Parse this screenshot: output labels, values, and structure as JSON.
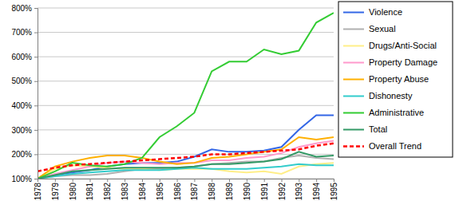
{
  "chart_data": {
    "type": "line",
    "x": [
      1978,
      1979,
      1980,
      1981,
      1982,
      1983,
      1984,
      1985,
      1986,
      1987,
      1988,
      1989,
      1990,
      1991,
      1992,
      1993,
      1994,
      1995
    ],
    "xlim": [
      1978,
      1995
    ],
    "xticks": [
      1978,
      1979,
      1980,
      1981,
      1982,
      1983,
      1984,
      1985,
      1986,
      1987,
      1988,
      1989,
      1990,
      1991,
      1992,
      1993,
      1994,
      1995
    ],
    "ylim": [
      100,
      800
    ],
    "yticks": [
      {
        "value": 100,
        "label": "100%"
      },
      {
        "value": 200,
        "label": "200%"
      },
      {
        "value": 300,
        "label": "300%"
      },
      {
        "value": 400,
        "label": "400%"
      },
      {
        "value": 500,
        "label": "500%"
      },
      {
        "value": 600,
        "label": "600%"
      },
      {
        "value": 700,
        "label": "700%"
      },
      {
        "value": 800,
        "label": "800%"
      }
    ],
    "grid": true,
    "legend": "right",
    "series": [
      {
        "name": "Violence",
        "color": "#3366e6",
        "line_style": "solid",
        "values": [
          100,
          115,
          125,
          135,
          150,
          160,
          165,
          165,
          170,
          190,
          220,
          210,
          210,
          215,
          230,
          300,
          360,
          360
        ]
      },
      {
        "name": "Sexual",
        "color": "#b0b0b0",
        "line_style": "solid",
        "values": [
          100,
          110,
          115,
          115,
          120,
          130,
          140,
          140,
          145,
          150,
          160,
          165,
          170,
          170,
          185,
          195,
          185,
          180
        ]
      },
      {
        "name": "Drugs/Anti-Social",
        "color": "#ffee88",
        "line_style": "solid",
        "values": [
          100,
          140,
          155,
          150,
          145,
          140,
          140,
          135,
          140,
          140,
          140,
          130,
          125,
          130,
          120,
          150,
          160,
          165
        ]
      },
      {
        "name": "Property Damage",
        "color": "#ff99cc",
        "line_style": "solid",
        "values": [
          100,
          120,
          135,
          150,
          165,
          170,
          165,
          160,
          165,
          165,
          175,
          175,
          185,
          190,
          205,
          230,
          245,
          255
        ]
      },
      {
        "name": "Property Abuse",
        "color": "#ffb000",
        "line_style": "solid",
        "values": [
          100,
          150,
          170,
          185,
          195,
          195,
          185,
          170,
          160,
          165,
          185,
          190,
          200,
          210,
          220,
          270,
          260,
          270
        ]
      },
      {
        "name": "Dishonesty",
        "color": "#33cccc",
        "line_style": "solid",
        "values": [
          100,
          110,
          120,
          125,
          130,
          135,
          135,
          135,
          140,
          145,
          140,
          140,
          140,
          145,
          150,
          160,
          155,
          155
        ]
      },
      {
        "name": "Administrative",
        "color": "#33cc33",
        "line_style": "solid",
        "values": [
          100,
          130,
          165,
          155,
          150,
          160,
          185,
          270,
          315,
          370,
          540,
          580,
          580,
          630,
          610,
          625,
          740,
          780
        ]
      },
      {
        "name": "Total",
        "color": "#339966",
        "line_style": "solid",
        "values": [
          100,
          115,
          130,
          135,
          140,
          145,
          145,
          145,
          145,
          150,
          160,
          160,
          165,
          170,
          180,
          210,
          190,
          195
        ]
      },
      {
        "name": "Overall Trend",
        "color": "#ff0000",
        "line_style": "dashed",
        "values": [
          130,
          145,
          155,
          160,
          165,
          170,
          175,
          180,
          185,
          190,
          200,
          200,
          205,
          210,
          215,
          220,
          235,
          245
        ]
      }
    ]
  }
}
